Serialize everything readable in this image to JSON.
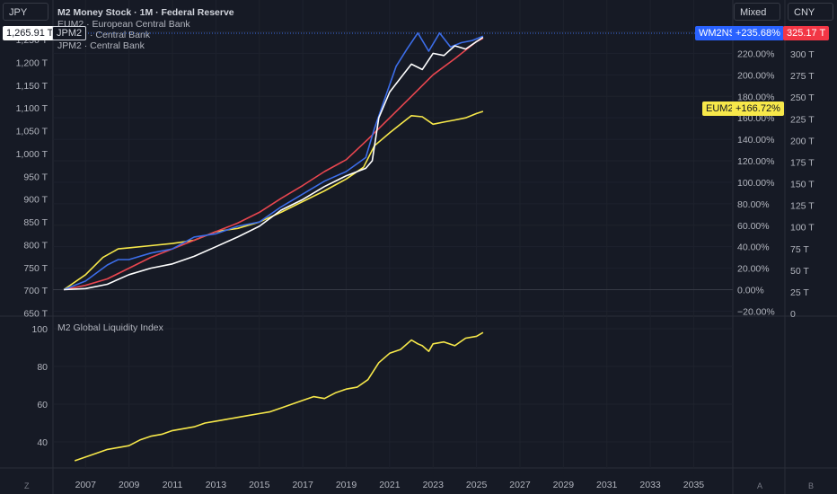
{
  "header": {
    "left_currency": "JPY",
    "mid_scale": "Mixed",
    "right_currency": "CNY"
  },
  "legend": {
    "main": "M2 Money Stock · 1M · Federal Reserve",
    "eu": "EUM2 · European Central Bank",
    "cn": "· Central Bank",
    "jp": "JPM2 · Central Bank",
    "lower_title": "M2 Global Liquidity Index"
  },
  "badges": {
    "jpy_value": "1,265.91 T",
    "jpm2": "JPM2",
    "wm2ns": "WM2NS",
    "wm2ns_pct": "+235.68%",
    "cny_value": "325.17 T",
    "eum2": "EUM2",
    "eum2_pct": "+166.72%"
  },
  "corners": {
    "bottom_left": "Z",
    "bottom_mid": "A",
    "bottom_right": "B"
  },
  "colors": {
    "background": "#161a25",
    "us_m2": "#ffffff",
    "eu_m2": "#f7e84a",
    "cn_m2": "#e8464f",
    "jp_m2": "#3c6de8",
    "liquidity_index": "#f7e84a",
    "wm2ns_badge": "#2962ff",
    "cny_badge": "#f23645"
  },
  "chart_data": [
    {
      "type": "line",
      "title": "M2 Money Stock · 1M · Federal Reserve",
      "x_ticks": [
        "2007",
        "2009",
        "2011",
        "2013",
        "2015",
        "2017",
        "2019",
        "2021",
        "2023",
        "2025",
        "2027",
        "2029",
        "2031",
        "2033",
        "2035"
      ],
      "xlim": [
        2005.5,
        2036.8
      ],
      "left_axis": {
        "unit": "JPY",
        "ticks": [
          "650 T",
          "700 T",
          "750 T",
          "800 T",
          "850 T",
          "900 T",
          "950 T",
          "1,000 T",
          "1,050 T",
          "1,100 T",
          "1,150 T",
          "1,200 T",
          "1,250 T"
        ],
        "range": [
          650,
          1250
        ]
      },
      "mid_axis": {
        "scale": "Mixed",
        "ticks": [
          "−20.00%",
          "0.00%",
          "20.00%",
          "40.00%",
          "60.00%",
          "80.00%",
          "100.00%",
          "120.00%",
          "140.00%",
          "160.00%",
          "180.00%",
          "200.00%",
          "220.00%",
          "240.00%"
        ],
        "range": [
          -20,
          240
        ]
      },
      "right_axis": {
        "unit": "CNY",
        "ticks": [
          "0",
          "25 T",
          "50 T",
          "75 T",
          "100 T",
          "125 T",
          "150 T",
          "175 T",
          "200 T",
          "225 T",
          "250 T",
          "275 T",
          "300 T",
          "325 T"
        ],
        "range": [
          0,
          325
        ]
      },
      "series": [
        {
          "name": "M2 Money Stock",
          "color": "#ffffff",
          "x": [
            2006.0,
            2007.0,
            2008.0,
            2009.0,
            2010.0,
            2011.0,
            2012.0,
            2013.0,
            2014.0,
            2015.0,
            2016.0,
            2017.0,
            2018.0,
            2019.0,
            2019.9,
            2020.2,
            2020.5,
            2021.0,
            2021.5,
            2022.0,
            2022.5,
            2023.0,
            2023.5,
            2024.0,
            2024.5,
            2025.0,
            2025.3
          ],
          "y": [
            0,
            1,
            5,
            14,
            20,
            24,
            31,
            40,
            49,
            59,
            74,
            84,
            96,
            106,
            113,
            120,
            160,
            184,
            197,
            210,
            205,
            220,
            218,
            227,
            224,
            231,
            235
          ]
        },
        {
          "name": "EUM2",
          "color": "#f7e84a",
          "x": [
            2006.0,
            2007.0,
            2007.8,
            2008.5,
            2009.0,
            2010.0,
            2011.0,
            2012.0,
            2013.0,
            2014.0,
            2015.0,
            2016.0,
            2017.0,
            2018.0,
            2019.0,
            2019.8,
            2020.3,
            2021.0,
            2021.5,
            2022.0,
            2022.5,
            2023.0,
            2023.5,
            2024.0,
            2024.5,
            2025.0,
            2025.3
          ],
          "y": [
            0,
            14,
            30,
            38,
            39,
            41,
            43,
            46,
            54,
            57,
            63,
            72,
            82,
            92,
            103,
            114,
            134,
            146,
            154,
            162,
            161,
            154,
            156,
            158,
            160,
            164,
            166
          ]
        },
        {
          "name": "",
          "color": "#e8464f",
          "x": [
            2006.0,
            2007.0,
            2008.0,
            2009.0,
            2010.0,
            2011.0,
            2012.0,
            2013.0,
            2014.0,
            2015.0,
            2016.0,
            2017.0,
            2018.0,
            2019.0,
            2020.0,
            2021.0,
            2022.0,
            2023.0,
            2024.0,
            2025.0,
            2025.3
          ],
          "y": [
            0,
            4,
            10,
            20,
            30,
            38,
            46,
            54,
            62,
            72,
            85,
            97,
            110,
            121,
            140,
            160,
            180,
            200,
            215,
            231,
            234
          ]
        },
        {
          "name": "JPM2",
          "color": "#3c6de8",
          "x": [
            2006.0,
            2007.0,
            2008.0,
            2008.5,
            2009.0,
            2010.0,
            2011.0,
            2012.0,
            2013.0,
            2014.0,
            2015.0,
            2016.0,
            2017.0,
            2018.0,
            2019.0,
            2019.9,
            2020.3,
            2020.8,
            2021.3,
            2021.8,
            2022.3,
            2022.8,
            2023.3,
            2023.8,
            2024.3,
            2024.8,
            2025.3
          ],
          "y": [
            0,
            8,
            23,
            28,
            28,
            34,
            38,
            49,
            52,
            59,
            63,
            77,
            89,
            101,
            110,
            123,
            150,
            179,
            208,
            224,
            239,
            222,
            239,
            226,
            230,
            232,
            236
          ]
        }
      ]
    },
    {
      "type": "line",
      "title": "M2 Global Liquidity Index",
      "x_ticks": [
        "2007",
        "2009",
        "2011",
        "2013",
        "2015",
        "2017",
        "2019",
        "2021",
        "2023",
        "2025",
        "2027",
        "2029",
        "2031",
        "2033",
        "2035"
      ],
      "ylim": [
        30,
        100
      ],
      "y_ticks": [
        "40",
        "60",
        "80",
        "100"
      ],
      "series": [
        {
          "name": "M2 Global Liquidity Index",
          "color": "#f7e84a",
          "x": [
            2006.5,
            2007.5,
            2008.0,
            2008.5,
            2009.0,
            2009.5,
            2010.0,
            2010.5,
            2011.0,
            2011.5,
            2012.0,
            2012.5,
            2013.0,
            2013.5,
            2014.0,
            2014.5,
            2015.0,
            2015.5,
            2016.0,
            2016.5,
            2017.0,
            2017.5,
            2018.0,
            2018.5,
            2019.0,
            2019.5,
            2020.0,
            2020.5,
            2021.0,
            2021.5,
            2022.0,
            2022.3,
            2022.5,
            2022.8,
            2023.0,
            2023.5,
            2024.0,
            2024.5,
            2025.0,
            2025.3
          ],
          "y": [
            30,
            34,
            36,
            37,
            38,
            41,
            43,
            44,
            46,
            47,
            48,
            50,
            51,
            52,
            53,
            54,
            55,
            56,
            58,
            60,
            62,
            64,
            63,
            66,
            68,
            69,
            73,
            82,
            87,
            89,
            94,
            92,
            91,
            88,
            92,
            93,
            91,
            95,
            96,
            98
          ]
        }
      ]
    }
  ]
}
